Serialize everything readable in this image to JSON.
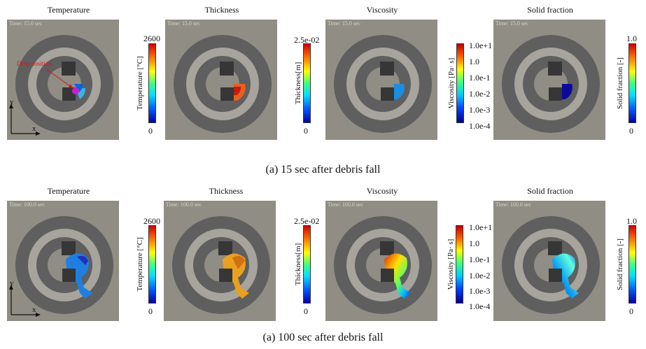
{
  "rows": [
    {
      "caption": "(a) 15 sec after debris fall",
      "time_label": "Time: 15.0 sec",
      "panels": [
        {
          "title": "Temperature",
          "cbar_label": "Temperature [°C]",
          "ticks": [
            "2600",
            "0"
          ]
        },
        {
          "title": "Thickness",
          "cbar_label": "Thickness[m]",
          "ticks": [
            "2.5e-02",
            "0"
          ]
        },
        {
          "title": "Viscosity",
          "cbar_label": "Viscosity [Pa· s]",
          "ticks": [
            "1.0e+1",
            "1.0",
            "1.0e-1",
            "1.0e-2",
            "1.0e-3",
            "1.0e-4"
          ]
        },
        {
          "title": "Solid fraction",
          "cbar_label": "Solid fraction [-]",
          "ticks": [
            "1.0",
            "0"
          ]
        }
      ]
    },
    {
      "caption": "(a) 100 sec after debris fall",
      "time_label": "Time: 100.0 sec",
      "panels": [
        {
          "title": "Temperature",
          "cbar_label": "Temperature [°C]",
          "ticks": [
            "2600",
            "0"
          ]
        },
        {
          "title": "Thickness",
          "cbar_label": "Thickness[m]",
          "ticks": [
            "2.5e-02",
            "0"
          ]
        },
        {
          "title": "Viscosity",
          "cbar_label": "Viscosity [Pa· s]",
          "ticks": [
            "1.0e+1",
            "1.0",
            "1.0e-1",
            "1.0e-2",
            "1.0e-3",
            "1.0e-4"
          ]
        },
        {
          "title": "Solid fraction",
          "cbar_label": "Solid fraction [-]",
          "ticks": [
            "1.0",
            "0"
          ]
        }
      ]
    }
  ],
  "annotation": "Drop position",
  "axis_labels": {
    "y": "y",
    "x": "x"
  },
  "colors": {
    "background": "#8f8d84",
    "ring": "#5f5f5f",
    "pillar": "#363636",
    "annotation": "#e01010"
  }
}
